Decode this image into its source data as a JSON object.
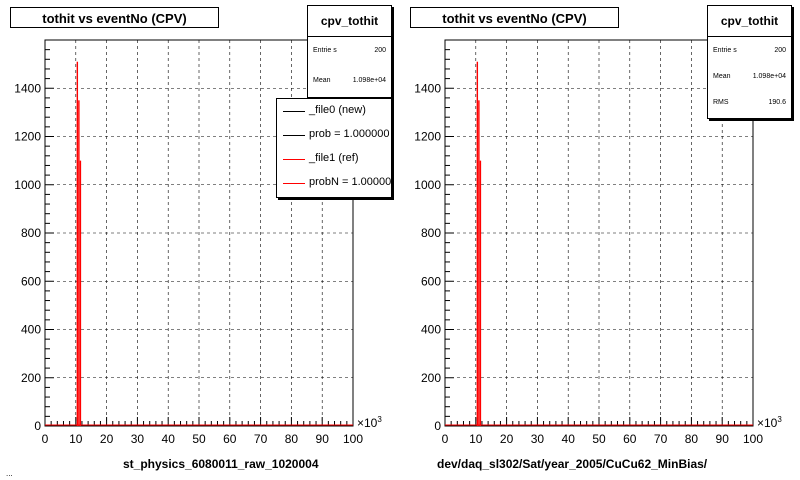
{
  "chart_data": [
    {
      "type": "histogram",
      "title": "tothit vs eventNo (CPV)",
      "xlabel": "st_physics_6080011_raw_1020004",
      "ylabel": "",
      "x_multiplier": "×10^3",
      "xlim": [
        0,
        100
      ],
      "ylim": [
        0,
        1600
      ],
      "xticks": [
        "0",
        "10",
        "20",
        "30",
        "40",
        "50",
        "60",
        "70",
        "80",
        "90",
        "100"
      ],
      "yticks": [
        "0",
        "200",
        "400",
        "600",
        "800",
        "1000",
        "1200",
        "1400"
      ],
      "grid": true,
      "stats": {
        "name": "cpv_tothit",
        "entries_label": "Entrie s",
        "entries": "200",
        "mean_label": "Mean",
        "mean": "1.098e+04"
      },
      "legend": {
        "position": "top-right",
        "entries": [
          {
            "label": "_file0 (new)",
            "color": "#000000"
          },
          {
            "label": "prob = 1.000000",
            "color": "#000000"
          },
          {
            "label": "_file1 (ref)",
            "color": "#ff0000"
          },
          {
            "label": "probN = 1.000000",
            "color": "#ff0000"
          }
        ]
      },
      "series": [
        {
          "color": "#ff0000",
          "x": [
            10.5,
            11.0,
            11.5
          ],
          "values": [
            1510,
            1350,
            1100
          ]
        }
      ]
    },
    {
      "type": "histogram",
      "title": "tothit vs eventNo (CPV)",
      "xlabel": "dev/daq_sl302/Sat/year_2005/CuCu62_MinBias/",
      "ylabel": "",
      "x_multiplier": "×10^3",
      "xlim": [
        0,
        100
      ],
      "ylim": [
        0,
        1600
      ],
      "xticks": [
        "0",
        "10",
        "20",
        "30",
        "40",
        "50",
        "60",
        "70",
        "80",
        "90",
        "100"
      ],
      "yticks": [
        "0",
        "200",
        "400",
        "600",
        "800",
        "1000",
        "1200",
        "1400"
      ],
      "grid": true,
      "stats": {
        "name": "cpv_tothit",
        "entries_label": "Entrie s",
        "entries": "200",
        "mean_label": "Mean",
        "mean": "1.098e+04",
        "rms_label": "RMS",
        "rms": "190.6"
      },
      "series": [
        {
          "color": "#ff0000",
          "x": [
            10.5,
            11.0,
            11.5
          ],
          "values": [
            1510,
            1350,
            1100
          ]
        }
      ]
    }
  ],
  "footer_fragment": "..."
}
